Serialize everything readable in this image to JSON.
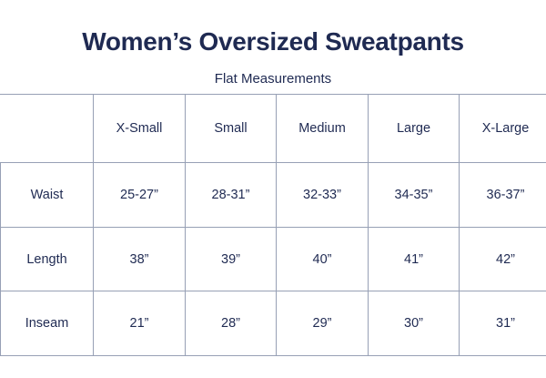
{
  "page": {
    "title": "Women’s Oversized Sweatpants",
    "subtitle": "Flat Measurements"
  },
  "colors": {
    "text": "#1f2a52",
    "border": "#97a0b5",
    "background": "#ffffff"
  },
  "chart_data": {
    "type": "table",
    "title": "Women’s Oversized Sweatpants",
    "subtitle": "Flat Measurements",
    "columns": [
      "",
      "X-Small",
      "Small",
      "Medium",
      "Large",
      "X-Large"
    ],
    "rows": [
      {
        "label": "Waist",
        "values": [
          "25-27”",
          "28-31”",
          "32-33”",
          "34-35”",
          "36-37”"
        ]
      },
      {
        "label": "Length",
        "values": [
          "38”",
          "39”",
          "40”",
          "41”",
          "42”"
        ]
      },
      {
        "label": "Inseam",
        "values": [
          "21”",
          "28”",
          "29”",
          "30”",
          "31”"
        ]
      }
    ],
    "layout_hints": {
      "grid": "on",
      "header_row": true,
      "row_label_column": true,
      "right_edge_clipped": true
    }
  }
}
